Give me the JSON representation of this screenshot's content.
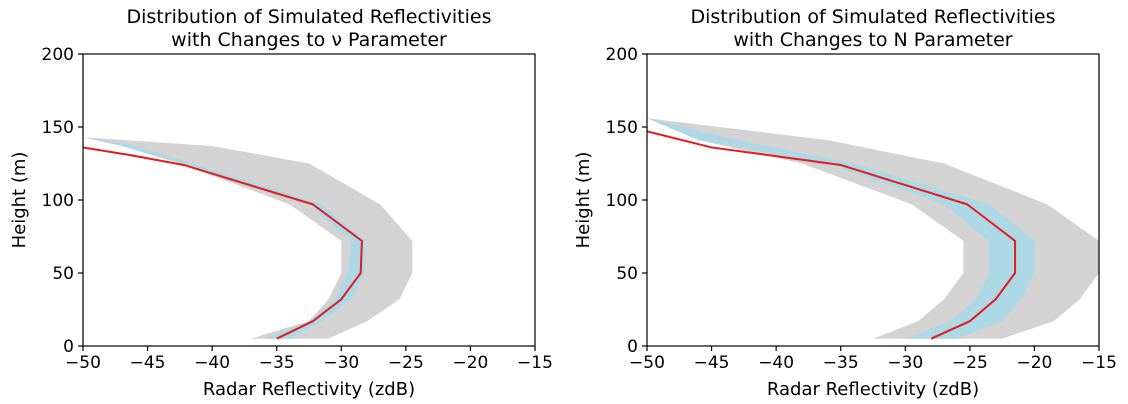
{
  "colors": {
    "outer_band": "#d3d3d3",
    "inner_band": "#add8e6",
    "median_line": "#e41a1c",
    "axes": "#000000",
    "background": "#ffffff"
  },
  "chart_data": [
    {
      "type": "area",
      "title": [
        "Distribution of Simulated Reflectivities",
        "with Changes to ν Parameter"
      ],
      "xlabel": "Radar Reflectivity (zdB)",
      "ylabel": "Height (m)",
      "xlim": [
        -50,
        -15
      ],
      "ylim": [
        0,
        200
      ],
      "xticks": [
        -50,
        -45,
        -40,
        -35,
        -30,
        -25,
        -20,
        -15
      ],
      "yticks": [
        0,
        50,
        100,
        150,
        200
      ],
      "xtick_labels": [
        "−50",
        "−45",
        "−40",
        "−35",
        "−30",
        "−25",
        "−20",
        "−15"
      ],
      "ytick_labels": [
        "0",
        "50",
        "100",
        "150",
        "200"
      ],
      "grid": false,
      "heights": [
        5,
        17,
        32,
        50,
        72,
        97,
        125,
        137,
        143
      ],
      "outer_band": {
        "min": [
          -37,
          -32.5,
          -31,
          -30,
          -30,
          -34,
          -42.5,
          -47,
          -50
        ],
        "max": [
          -31,
          -28,
          -25.5,
          -24.5,
          -24.5,
          -27,
          -32.5,
          -40,
          -50
        ]
      },
      "inner_band": {
        "min": [
          -36,
          -32.5,
          -30.5,
          -29.5,
          -29.2,
          -32.5,
          -42.2,
          -47,
          -50
        ],
        "max": [
          -34,
          -31.5,
          -29.2,
          -28.2,
          -28.2,
          -31.5,
          -41.5,
          -46,
          -50
        ]
      },
      "median": {
        "x": [
          -35,
          -32.2,
          -30,
          -28.5,
          -28.4,
          -32.2,
          -42.2,
          -46.5,
          -50
        ],
        "y": [
          5,
          17,
          32,
          50,
          72,
          97,
          124,
          131,
          136
        ]
      }
    },
    {
      "type": "area",
      "title": [
        "Distribution of Simulated Reflectivities",
        "with Changes to N Parameter"
      ],
      "xlabel": "Radar Reflectivity (zdB)",
      "ylabel": "Height (m)",
      "xlim": [
        -50,
        -15
      ],
      "ylim": [
        0,
        200
      ],
      "xticks": [
        -50,
        -45,
        -40,
        -35,
        -30,
        -25,
        -20,
        -15
      ],
      "yticks": [
        0,
        50,
        100,
        150,
        200
      ],
      "xtick_labels": [
        "−50",
        "−45",
        "−40",
        "−35",
        "−30",
        "−25",
        "−20",
        "−15"
      ],
      "ytick_labels": [
        "0",
        "50",
        "100",
        "150",
        "200"
      ],
      "grid": false,
      "heights": [
        5,
        17,
        32,
        50,
        72,
        97,
        125,
        141,
        156
      ],
      "outer_band": {
        "min": [
          -32.5,
          -29,
          -27,
          -25.5,
          -25.5,
          -29.5,
          -38,
          -46,
          -50
        ],
        "max": [
          -22.5,
          -18.5,
          -16.5,
          -15,
          -15,
          -19,
          -27,
          -36,
          -50
        ]
      },
      "inner_band": {
        "min": [
          -30,
          -26.5,
          -24.5,
          -23.5,
          -23.5,
          -27,
          -36,
          -46,
          -50
        ],
        "max": [
          -26,
          -22.5,
          -21,
          -20,
          -20,
          -23.5,
          -34,
          -43,
          -50
        ]
      },
      "median": {
        "x": [
          -28,
          -25,
          -23,
          -21.5,
          -21.5,
          -25.2,
          -35,
          -45,
          -50
        ],
        "y": [
          5,
          17,
          32,
          50,
          72,
          97,
          124,
          136,
          147
        ]
      }
    }
  ]
}
